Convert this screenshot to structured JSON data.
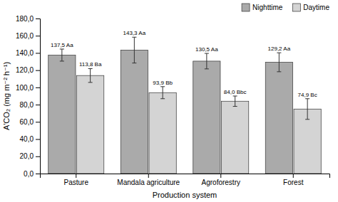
{
  "chart_data": {
    "type": "bar",
    "categories": [
      "Pasture",
      "Mandala agriculture",
      "Agroforestry",
      "Forest"
    ],
    "series": [
      {
        "name": "Nighttime",
        "color": "#aaaaaa",
        "values": [
          137.5,
          143.3,
          130.5,
          129.2
        ],
        "errors": [
          7,
          15,
          9,
          11
        ],
        "value_labels": [
          "137,5 Aa",
          "143,3 Aa",
          "130,5 Aa",
          "129,2 Aa"
        ]
      },
      {
        "name": "Daytime",
        "color": "#d4d4d4",
        "values": [
          113.8,
          93.9,
          84.0,
          74.9
        ],
        "errors": [
          8,
          7,
          6,
          12
        ],
        "value_labels": [
          "113,8 Ba",
          "93,9 Bb",
          "84,0 Bbc",
          "74,9 Bc"
        ]
      }
    ],
    "xlabel": "Production system",
    "ylabel": "A'CO₂ (mg m⁻² h⁻¹)",
    "ylim": [
      0,
      180
    ],
    "yticks": [
      {
        "value": 0,
        "label": "0,0"
      },
      {
        "value": 20,
        "label": "20,0"
      },
      {
        "value": 40,
        "label": "40,0"
      },
      {
        "value": 60,
        "label": "60,0"
      },
      {
        "value": 80,
        "label": "80,0"
      },
      {
        "value": 100,
        "label": "100,0"
      },
      {
        "value": 120,
        "label": "120,0"
      },
      {
        "value": 140,
        "label": "140,0"
      },
      {
        "value": 160,
        "label": "160,0"
      },
      {
        "value": 180,
        "label": "180,0"
      }
    ],
    "legend": "upper right",
    "data_labels": true,
    "grid": false
  }
}
